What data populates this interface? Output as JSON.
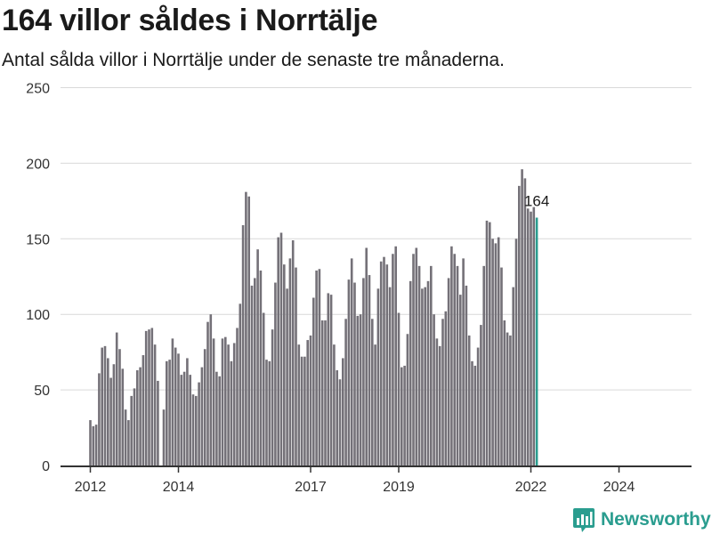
{
  "header": {
    "title": "164 villor såldes i Norrtälje",
    "subtitle": "Antal sålda villor i Norrtälje under de senaste tre månaderna."
  },
  "brand": {
    "name": "Newsworthy",
    "icon": "newsworthy-logo-icon"
  },
  "colors": {
    "bar": "#747178",
    "highlight": "#2a9d8f",
    "grid": "#d9d9d9",
    "axis": "#333333"
  },
  "chart_data": {
    "type": "bar",
    "y_ticks": [
      0,
      50,
      100,
      150,
      200,
      250
    ],
    "ylim": [
      0,
      250
    ],
    "x_ticks": [
      "2012",
      "2014",
      "2017",
      "2019",
      "2022",
      "2024"
    ],
    "grid": true,
    "annotation": "164",
    "series": [
      {
        "values": [
          30,
          26,
          27,
          61,
          78,
          79,
          71,
          58,
          67,
          88,
          77,
          64,
          37,
          30,
          46,
          51,
          63,
          65,
          73,
          89,
          90,
          91,
          80,
          56,
          null,
          37,
          69,
          70,
          84,
          78,
          74,
          60,
          62,
          71,
          60,
          47,
          46,
          55,
          65,
          77,
          95,
          100,
          84,
          62,
          59,
          84,
          85,
          80,
          69,
          81,
          91,
          107,
          159,
          181,
          178,
          119,
          124,
          143,
          129,
          101,
          70,
          69,
          90,
          121,
          151,
          154,
          133,
          117,
          137,
          149,
          131,
          80,
          72,
          72,
          83,
          86,
          111,
          129,
          130,
          96,
          96,
          114,
          113,
          80,
          63,
          57,
          71,
          97,
          123,
          137,
          121,
          99,
          100,
          124,
          144,
          126,
          97,
          80,
          117,
          135,
          138,
          133,
          118,
          140,
          145,
          101,
          65,
          66,
          87,
          122,
          140,
          144,
          132,
          117,
          118,
          122,
          132,
          100,
          84,
          79,
          97,
          102,
          124,
          145,
          140,
          132,
          113,
          137,
          119,
          86,
          69,
          66,
          78,
          93,
          132,
          162,
          161,
          150,
          147,
          151,
          131,
          96,
          88,
          86,
          118,
          150,
          185,
          196,
          190,
          170,
          168,
          171,
          164
        ]
      }
    ]
  }
}
